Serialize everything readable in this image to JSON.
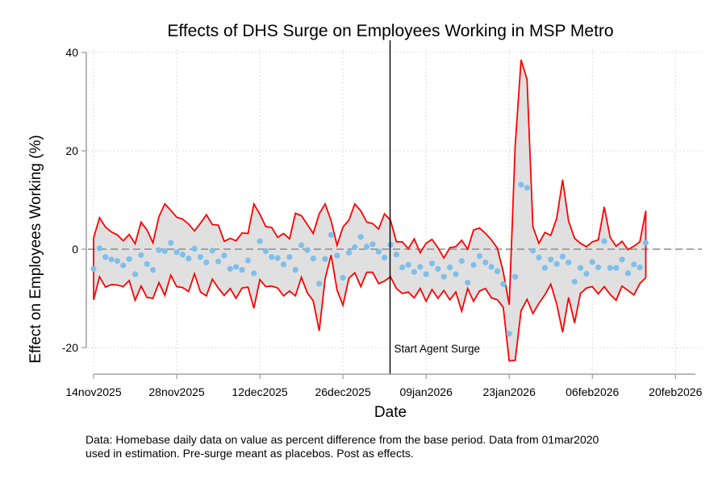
{
  "chart_data": {
    "type": "line",
    "title": "Effects of DHS Surge on Employees Working in MSP Metro",
    "xlabel": "Date",
    "ylabel": "Effect on Employees Working (%)",
    "note_lines": [
      "Data: Homebase daily data on value as percent difference from the base period. Data from 01mar2020",
      "used in estimation. Pre-surge meant as placebos. Post as effects."
    ],
    "x_start_date": "14nov2025",
    "x_ticks": [
      "14nov2025",
      "28nov2025",
      "12dec2025",
      "26dec2025",
      "09jan2026",
      "23jan2026",
      "06feb2026",
      "20feb2026"
    ],
    "x_tick_days": [
      0,
      14,
      28,
      42,
      56,
      70,
      84,
      98
    ],
    "xlim_days": [
      0,
      98
    ],
    "y_ticks": [
      40,
      20,
      0,
      -20
    ],
    "y_tick_labels": [
      "40",
      "20",
      "0",
      "-20"
    ],
    "ylim": [
      -25,
      42
    ],
    "grid": true,
    "reference_line": {
      "y": 0,
      "style": "dashed"
    },
    "event_line": {
      "day": 50,
      "label": "Start Agent Surge"
    },
    "colors": {
      "point": "#7fbfea",
      "ci_line": "#ff0000",
      "ci_fill": "#e0e0e0",
      "event_line": "#000000",
      "zero_line": "#8c8c8c"
    },
    "series": [
      {
        "name": "point_estimate",
        "marker": "circle",
        "values": [
          -4.0,
          0.2,
          -1.6,
          -2.1,
          -2.4,
          -3.3,
          -2.0,
          -5.1,
          -1.2,
          -3.0,
          -4.2,
          -0.2,
          -0.4,
          1.3,
          -0.6,
          -1.1,
          -1.9,
          0.1,
          -1.6,
          -2.7,
          -0.3,
          -2.5,
          -1.3,
          -4.0,
          -3.6,
          -4.2,
          -2.3,
          -4.9,
          1.6,
          -0.4,
          -1.6,
          -1.8,
          -3.1,
          -1.6,
          -4.2,
          0.8,
          -0.2,
          -1.9,
          -7.0,
          -2.0,
          2.9,
          -1.3,
          -5.8,
          -0.7,
          0.4,
          2.5,
          0.5,
          1.0,
          -0.5,
          -1.7,
          0.9,
          -1.1,
          -3.7,
          -3.2,
          -4.6,
          -3.6,
          -5.1,
          -2.9,
          -4.0,
          -5.6,
          -3.7,
          -5.1,
          -2.4,
          -6.8,
          -3.2,
          -1.4,
          -2.7,
          -3.6,
          -4.5,
          -7.1,
          -17.2,
          -5.6,
          13.1,
          12.5,
          -0.3,
          -1.7,
          -3.8,
          -2.1,
          -3.0,
          -1.5,
          -2.7,
          -6.6,
          -3.8,
          -5.0,
          -2.6,
          -3.7,
          1.6,
          -3.8,
          -3.8,
          -2.1,
          -4.9,
          -3.1,
          -3.7,
          1.3
        ]
      },
      {
        "name": "ci_upper",
        "values": [
          2.3,
          6.4,
          4.5,
          3.5,
          2.9,
          1.7,
          3.0,
          1.1,
          5.5,
          3.9,
          1.3,
          6.6,
          9.2,
          7.9,
          6.5,
          6.1,
          5.1,
          3.7,
          5.3,
          7.0,
          5.0,
          4.9,
          1.6,
          2.2,
          1.7,
          3.3,
          3.2,
          9.2,
          7.1,
          4.6,
          4.4,
          2.4,
          3.2,
          2.1,
          7.3,
          6.8,
          5.0,
          3.2,
          7.2,
          9.2,
          5.8,
          0.8,
          4.5,
          5.9,
          9.2,
          7.8,
          5.5,
          5.2,
          4.1,
          7.2,
          5.9,
          1.5,
          1.5,
          0.1,
          2.1,
          -0.7,
          1.2,
          2.0,
          0.3,
          -1.8,
          0.3,
          0.5,
          1.8,
          0.0,
          3.9,
          4.3,
          3.2,
          1.9,
          0.2,
          -4.6,
          -11.3,
          21.0,
          38.5,
          34.5,
          4.5,
          1.2,
          3.4,
          2.8,
          6.3,
          14.1,
          5.7,
          2.2,
          1.2,
          0.5,
          1.5,
          1.9,
          8.6,
          2.4,
          0.6,
          1.6,
          -0.1,
          0.6,
          1.5,
          7.8
        ]
      },
      {
        "name": "ci_lower",
        "values": [
          -10.3,
          -5.6,
          -7.7,
          -7.2,
          -7.3,
          -7.6,
          -6.4,
          -10.4,
          -7.5,
          -9.8,
          -10.0,
          -6.8,
          -9.4,
          -5.3,
          -7.6,
          -7.8,
          -8.6,
          -5.0,
          -8.7,
          -9.5,
          -6.1,
          -7.9,
          -9.4,
          -8.0,
          -10.0,
          -7.9,
          -7.7,
          -12.0,
          -6.2,
          -7.6,
          -7.5,
          -7.9,
          -9.5,
          -8.5,
          -9.5,
          -5.7,
          -8.9,
          -10.5,
          -16.6,
          -6.0,
          -1.2,
          -8.3,
          -11.4,
          -5.9,
          -4.8,
          -7.6,
          -4.7,
          -4.7,
          -7.0,
          -6.5,
          -5.6,
          -8.0,
          -9.0,
          -8.7,
          -9.9,
          -8.0,
          -10.6,
          -8.2,
          -10.0,
          -8.4,
          -10.3,
          -8.7,
          -12.6,
          -8.0,
          -10.6,
          -8.5,
          -8.0,
          -9.9,
          -10.3,
          -11.8,
          -22.7,
          -22.6,
          -12.5,
          -10.2,
          -13.1,
          -11.0,
          -9.3,
          -7.1,
          -11.2,
          -16.9,
          -9.8,
          -15.0,
          -9.0,
          -7.9,
          -7.6,
          -9.1,
          -7.6,
          -9.2,
          -10.4,
          -7.5,
          -8.4,
          -9.3,
          -7.0,
          -5.8
        ]
      }
    ]
  }
}
